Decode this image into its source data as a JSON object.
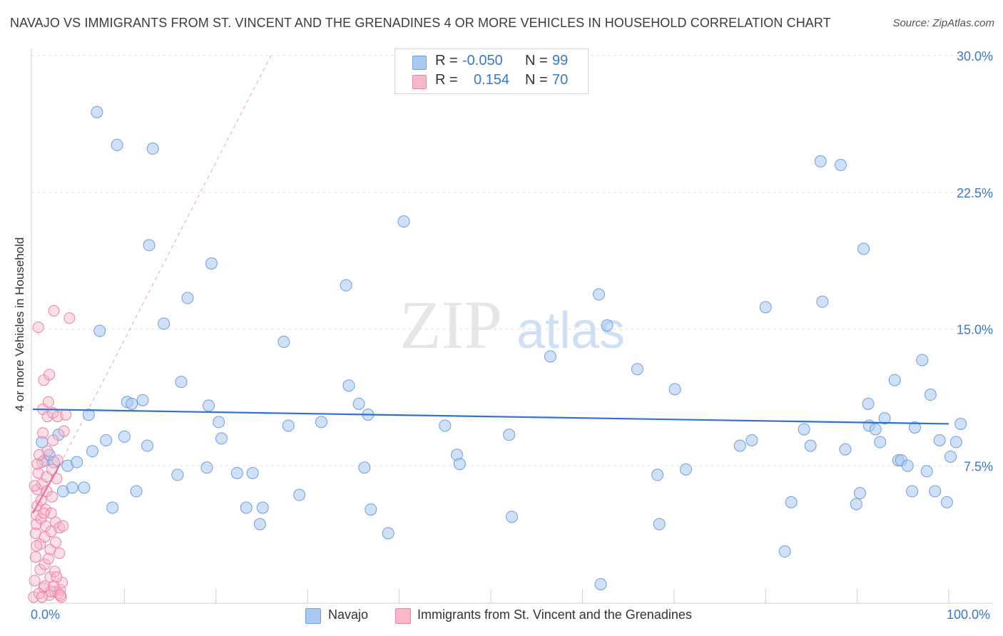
{
  "title": "NAVAJO VS IMMIGRANTS FROM ST. VINCENT AND THE GRENADINES 4 OR MORE VEHICLES IN HOUSEHOLD CORRELATION CHART",
  "source": "Source: ZipAtlas.com",
  "watermark": {
    "zip": "ZIP",
    "atlas": "atlas"
  },
  "legend": {
    "rows": [
      {
        "r_label": "R =",
        "r_value": "-0.050",
        "n_label": "N =",
        "n_value": "99",
        "color": "#a9c9f1",
        "border": "#6d9fdc"
      },
      {
        "r_label": "R =",
        "r_value": "0.154",
        "n_label": "N =",
        "n_value": "70",
        "color": "#f7b8ca",
        "border": "#e883a3"
      }
    ]
  },
  "chart_data": {
    "type": "scatter",
    "title": "NAVAJO VS IMMIGRANTS FROM ST. VINCENT AND THE GRENADINES 4 OR MORE VEHICLES IN HOUSEHOLD CORRELATION CHART",
    "xlabel": "",
    "ylabel": "4 or more Vehicles in Household",
    "xlim": [
      0,
      100
    ],
    "ylim": [
      0,
      30
    ],
    "x_tick_labels": [
      "0.0%",
      "100.0%"
    ],
    "y_ticks": [
      7.5,
      15.0,
      22.5,
      30.0
    ],
    "y_tick_labels": [
      "7.5%",
      "15.0%",
      "22.5%",
      "30.0%"
    ],
    "grid": true,
    "legend_position": "bottom",
    "series": [
      {
        "name": "Navajo",
        "color": "#a9c9f1",
        "edge": "#6d9fdc",
        "r": -0.05,
        "n": 99,
        "trend": {
          "x": [
            0,
            100
          ],
          "y": [
            10.6,
            9.8
          ],
          "color": "#2f72cf"
        },
        "points": [
          [
            1,
            8.8
          ],
          [
            1.3,
            7.8
          ],
          [
            1.8,
            8.1
          ],
          [
            2.3,
            7.7
          ],
          [
            2.8,
            9.2
          ],
          [
            3.3,
            6.1
          ],
          [
            3.8,
            7.5
          ],
          [
            4.3,
            6.3
          ],
          [
            4.8,
            7.7
          ],
          [
            5.6,
            6.3
          ],
          [
            6.1,
            10.3
          ],
          [
            6.5,
            8.3
          ],
          [
            7,
            26.9
          ],
          [
            7.3,
            14.9
          ],
          [
            8,
            8.9
          ],
          [
            8.7,
            5.2
          ],
          [
            9.2,
            25.1
          ],
          [
            10,
            9.1
          ],
          [
            10.3,
            11
          ],
          [
            10.8,
            10.9
          ],
          [
            11.3,
            6.1
          ],
          [
            12,
            11.1
          ],
          [
            12.5,
            8.6
          ],
          [
            12.7,
            19.6
          ],
          [
            13.1,
            24.9
          ],
          [
            14.3,
            15.3
          ],
          [
            15.8,
            7
          ],
          [
            16.2,
            12.1
          ],
          [
            16.9,
            16.7
          ],
          [
            19,
            7.4
          ],
          [
            19.2,
            10.8
          ],
          [
            19.5,
            18.6
          ],
          [
            20.3,
            9.9
          ],
          [
            20.6,
            9
          ],
          [
            22.3,
            7.1
          ],
          [
            23.3,
            5.2
          ],
          [
            24,
            7.1
          ],
          [
            24.8,
            4.3
          ],
          [
            25.1,
            5.2
          ],
          [
            27.4,
            14.3
          ],
          [
            27.9,
            9.7
          ],
          [
            29.1,
            5.9
          ],
          [
            31.5,
            9.9
          ],
          [
            34.2,
            17.4
          ],
          [
            34.5,
            11.9
          ],
          [
            35.6,
            10.9
          ],
          [
            36.2,
            7.4
          ],
          [
            36.6,
            10.3
          ],
          [
            36.9,
            5.1
          ],
          [
            38.8,
            3.8
          ],
          [
            40.5,
            20.9
          ],
          [
            45,
            9.7
          ],
          [
            46.3,
            8.1
          ],
          [
            46.6,
            7.6
          ],
          [
            52,
            9.2
          ],
          [
            52.3,
            4.7
          ],
          [
            56.5,
            13.5
          ],
          [
            61.8,
            16.9
          ],
          [
            62,
            1
          ],
          [
            62.7,
            15.2
          ],
          [
            66,
            12.8
          ],
          [
            68.2,
            7
          ],
          [
            68.4,
            4.3
          ],
          [
            70.1,
            11.7
          ],
          [
            71.3,
            7.3
          ],
          [
            77.2,
            8.6
          ],
          [
            78.5,
            8.9
          ],
          [
            80,
            16.2
          ],
          [
            82.1,
            2.8
          ],
          [
            82.8,
            5.5
          ],
          [
            84.2,
            9.5
          ],
          [
            84.9,
            8.6
          ],
          [
            86,
            24.2
          ],
          [
            86.2,
            16.5
          ],
          [
            88.2,
            24
          ],
          [
            88.7,
            8.4
          ],
          [
            89.9,
            5.4
          ],
          [
            90.3,
            6
          ],
          [
            90.7,
            19.4
          ],
          [
            91.2,
            10.9
          ],
          [
            91.3,
            9.7
          ],
          [
            92,
            9.5
          ],
          [
            92.5,
            8.8
          ],
          [
            93,
            10.1
          ],
          [
            94.1,
            12.2
          ],
          [
            94.5,
            7.8
          ],
          [
            94.8,
            7.8
          ],
          [
            95.5,
            7.5
          ],
          [
            96,
            6.1
          ],
          [
            96.3,
            9.6
          ],
          [
            97.1,
            13.3
          ],
          [
            97.6,
            7.2
          ],
          [
            98,
            11.4
          ],
          [
            98.5,
            6.1
          ],
          [
            99,
            8.9
          ],
          [
            99.8,
            5.5
          ],
          [
            100.2,
            8
          ],
          [
            100.8,
            8.8
          ],
          [
            101.3,
            9.8
          ]
        ]
      },
      {
        "name": "Immigrants from St. Vincent and the Grenadines",
        "color": "#f7b8ca",
        "edge": "#e883a3",
        "r": 0.154,
        "n": 70,
        "trend": {
          "x": [
            0,
            3
          ],
          "y": [
            4.9,
            7.6
          ],
          "color": "#e9729a"
        },
        "trend_extension": {
          "x": [
            3,
            26
          ],
          "y": [
            7.6,
            30
          ],
          "color": "#e9a0b8",
          "style": "dashed"
        },
        "points": [
          [
            0.1,
            0.3
          ],
          [
            0.2,
            1.2
          ],
          [
            0.3,
            2.5
          ],
          [
            0.3,
            3.8
          ],
          [
            0.4,
            4.3
          ],
          [
            0.4,
            4.8
          ],
          [
            0.5,
            5.3
          ],
          [
            0.5,
            6.2
          ],
          [
            0.6,
            7.1
          ],
          [
            0.6,
            15.1
          ],
          [
            0.7,
            0.5
          ],
          [
            0.8,
            1.8
          ],
          [
            0.8,
            3.2
          ],
          [
            0.9,
            4.6
          ],
          [
            0.9,
            5.6
          ],
          [
            1,
            6.5
          ],
          [
            1,
            7.7
          ],
          [
            1.1,
            9.3
          ],
          [
            1.1,
            10.6
          ],
          [
            1.2,
            12.2
          ],
          [
            1.2,
            0.8
          ],
          [
            1.3,
            2.1
          ],
          [
            1.3,
            3.6
          ],
          [
            1.4,
            4.2
          ],
          [
            1.4,
            5.1
          ],
          [
            1.5,
            6.1
          ],
          [
            1.5,
            6.9
          ],
          [
            1.6,
            8.3
          ],
          [
            1.6,
            10.2
          ],
          [
            1.7,
            11
          ],
          [
            1.8,
            12.5
          ],
          [
            1.8,
            0.4
          ],
          [
            1.9,
            1.4
          ],
          [
            1.9,
            2.9
          ],
          [
            2,
            3.9
          ],
          [
            2,
            4.9
          ],
          [
            2.1,
            5.8
          ],
          [
            2.1,
            7.3
          ],
          [
            2.2,
            8.9
          ],
          [
            2.2,
            10.4
          ],
          [
            2.3,
            16
          ],
          [
            2.4,
            0.6
          ],
          [
            2.4,
            1.7
          ],
          [
            2.5,
            3.3
          ],
          [
            2.5,
            4.4
          ],
          [
            2.6,
            6.8
          ],
          [
            2.7,
            7.8
          ],
          [
            2.7,
            10.2
          ],
          [
            2.8,
            0.5
          ],
          [
            2.9,
            2.7
          ],
          [
            2.9,
            4.1
          ],
          [
            3,
            0.7
          ],
          [
            3.1,
            0.3
          ],
          [
            3.2,
            1.1
          ],
          [
            3.3,
            4.2
          ],
          [
            3.4,
            9.4
          ],
          [
            3.6,
            10.3
          ],
          [
            4,
            15.6
          ],
          [
            0.2,
            6.4
          ],
          [
            0.5,
            7.6
          ],
          [
            0.7,
            8.1
          ],
          [
            1,
            0.3
          ],
          [
            1.3,
            0.9
          ],
          [
            1.7,
            2.4
          ],
          [
            2,
            0.6
          ],
          [
            2.3,
            0.9
          ],
          [
            2.6,
            1.4
          ],
          [
            3,
            0.4
          ],
          [
            0.4,
            3.1
          ],
          [
            1.2,
            4.9
          ]
        ]
      }
    ]
  },
  "bottom_legend": [
    "Navajo",
    "Immigrants from St. Vincent and the Grenadines"
  ]
}
